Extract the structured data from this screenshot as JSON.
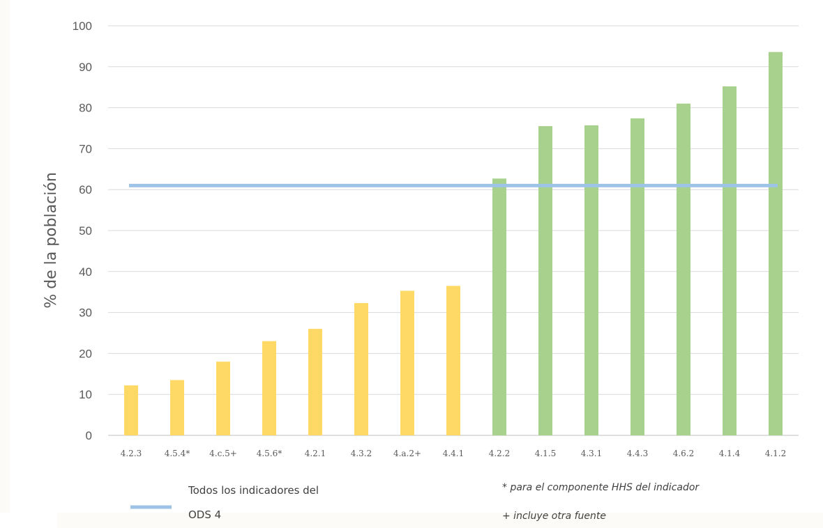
{
  "chart_data": {
    "type": "bar",
    "categories": [
      "4.2.3",
      "4.5.4*",
      "4.c.5+",
      "4.5.6*",
      "4.2.1",
      "4.3.2",
      "4.a.2+",
      "4.4.1",
      "4.2.2",
      "4.1.5",
      "4.3.1",
      "4.4.3",
      "4.6.2",
      "4.1.4",
      "4.1.2"
    ],
    "values": [
      12.2,
      13.5,
      18,
      23,
      26,
      32.3,
      35.3,
      36.5,
      62.7,
      75.5,
      75.7,
      77.4,
      81,
      85.2,
      93.6
    ],
    "bar_colors": [
      "#ffd966",
      "#ffd966",
      "#ffd966",
      "#ffd966",
      "#ffd966",
      "#ffd966",
      "#ffd966",
      "#ffd966",
      "#a9d18e",
      "#a9d18e",
      "#a9d18e",
      "#a9d18e",
      "#a9d18e",
      "#a9d18e",
      "#a9d18e"
    ],
    "reference_line": {
      "value": 61,
      "color": "#9dc3e6",
      "label_line1": "Todos los indicadores del",
      "label_line2": "ODS 4"
    },
    "ylabel": "% de la población",
    "ylim": [
      0,
      100
    ],
    "yticks": [
      0,
      10,
      20,
      30,
      40,
      50,
      60,
      70,
      80,
      90,
      100
    ],
    "grid": true,
    "legend_position": "bottom-left",
    "notes": [
      "* para el componente HHS del indicador",
      "+ incluye otra fuente"
    ]
  }
}
